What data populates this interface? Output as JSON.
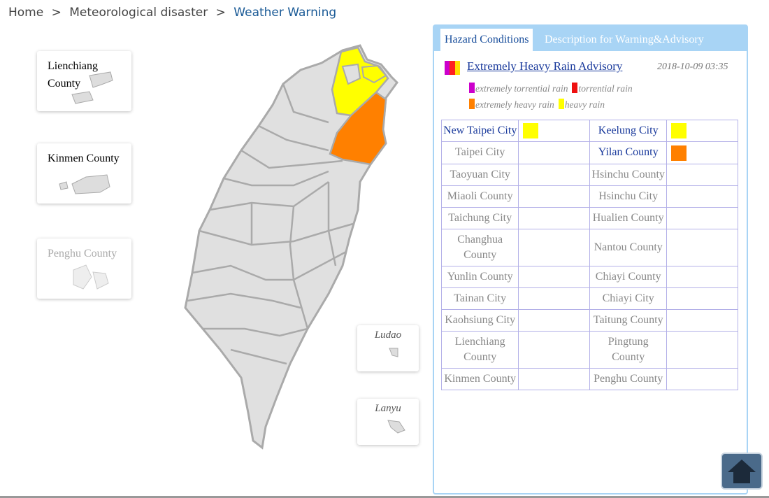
{
  "breadcrumb": {
    "items": [
      "Home",
      "Meteorological disaster",
      "Weather Warning"
    ],
    "separator": ">"
  },
  "outlying": [
    "Lienchiang County",
    "Kinmen County",
    "Penghu County"
  ],
  "islands": [
    "Ludao",
    "Lanyu"
  ],
  "tabs": [
    "Hazard Conditions",
    "Description for Warning&Advisory"
  ],
  "advisory": {
    "title": "Extremely Heavy Rain Advisory",
    "time": "2018-10-09 03:35",
    "colors": [
      "#cc00cc",
      "#ff2020",
      "#ffdd00"
    ]
  },
  "legend": [
    {
      "label": "extremely torrential rain",
      "color": "#cc00cc"
    },
    {
      "label": "torrential rain",
      "color": "#ee1111"
    },
    {
      "label": "extremely heavy rain",
      "color": "#ff8000"
    },
    {
      "label": "heavy rain",
      "color": "#ffff00"
    }
  ],
  "table": {
    "rows": [
      [
        {
          "name": "New Taipei City",
          "color": "#ffff00"
        },
        {
          "name": "Keelung City",
          "color": "#ffff00"
        }
      ],
      [
        {
          "name": "Taipei City"
        },
        {
          "name": "Yilan County",
          "color": "#ff8000"
        }
      ],
      [
        {
          "name": "Taoyuan City"
        },
        {
          "name": "Hsinchu County"
        }
      ],
      [
        {
          "name": "Miaoli County"
        },
        {
          "name": "Hsinchu City"
        }
      ],
      [
        {
          "name": "Taichung City"
        },
        {
          "name": "Hualien County"
        }
      ],
      [
        {
          "name": "Changhua County"
        },
        {
          "name": "Nantou County"
        }
      ],
      [
        {
          "name": "Yunlin County"
        },
        {
          "name": "Chiayi County"
        }
      ],
      [
        {
          "name": "Tainan City"
        },
        {
          "name": "Chiayi City"
        }
      ],
      [
        {
          "name": "Kaohsiung City"
        },
        {
          "name": "Taitung County"
        }
      ],
      [
        {
          "name": "Lienchiang County"
        },
        {
          "name": "Pingtung County"
        }
      ],
      [
        {
          "name": "Kinmen County"
        },
        {
          "name": "Penghu County"
        }
      ]
    ]
  }
}
